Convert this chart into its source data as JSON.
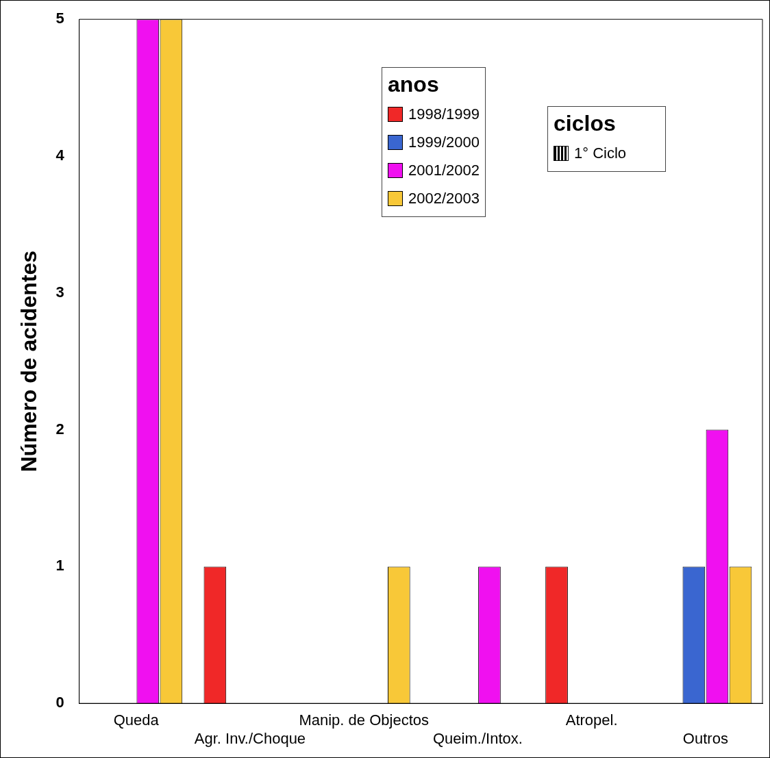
{
  "chart_data": {
    "type": "bar",
    "ylabel": "Número de acidentes",
    "legend_title": "anos",
    "legend": "top",
    "grid": false,
    "categories": [
      "Queda",
      "Agr. Inv./Choque",
      "Manip. de Objectos",
      "Queim./Intox.",
      "Atropel.",
      "Outros"
    ],
    "series": [
      {
        "name": "1998/1999",
        "color": "#f02828",
        "values": [
          null,
          1,
          null,
          null,
          1,
          null
        ]
      },
      {
        "name": "1999/2000",
        "color": "#3a66d0",
        "values": [
          null,
          null,
          null,
          null,
          null,
          1
        ]
      },
      {
        "name": "2001/2002",
        "color": "#f010f0",
        "values": [
          5,
          null,
          null,
          1,
          null,
          2
        ]
      },
      {
        "name": "2002/2003",
        "color": "#f8c838",
        "values": [
          5,
          null,
          1,
          null,
          null,
          1
        ]
      }
    ],
    "ylim": [
      0,
      5
    ],
    "yticks": [
      0,
      1,
      2,
      3,
      4,
      5
    ],
    "annotations": [
      "ciclos",
      "1° Ciclo"
    ]
  }
}
